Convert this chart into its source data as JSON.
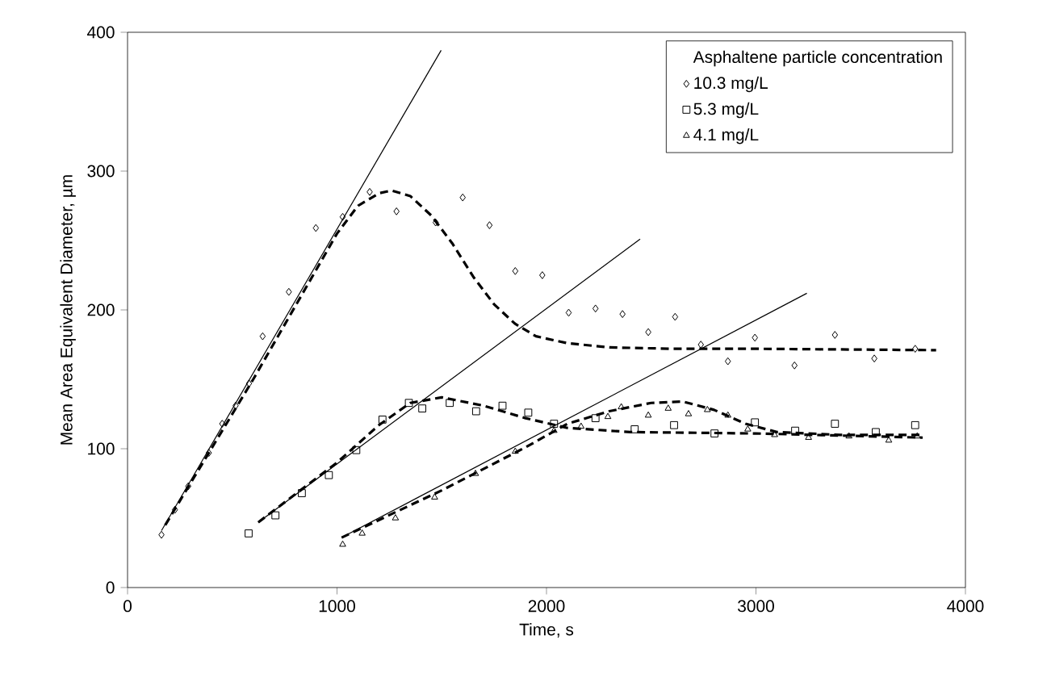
{
  "chart_data": {
    "type": "scatter",
    "xlabel": "Time, s",
    "ylabel": "Mean Area Equivalent Diameter, µm",
    "legend_title": "Asphaltene particle concentration",
    "legend": "top right",
    "grid": false,
    "xlim": [
      0,
      4000
    ],
    "ylim": [
      0,
      400
    ],
    "xticks": [
      0,
      1000,
      2000,
      3000,
      4000
    ],
    "yticks": [
      0,
      100,
      200,
      300,
      400
    ],
    "series": [
      {
        "name": "10.3 mg/L",
        "type": "scatter",
        "marker": "diamond",
        "color": "#000000",
        "x": [
          162,
          226,
          290,
          388,
          452,
          516,
          580,
          645,
          770,
          899,
          1027,
          1156,
          1284,
          1471,
          1600,
          1728,
          1851,
          1980,
          2106,
          2234,
          2363,
          2486,
          2614,
          2737,
          2866,
          2995,
          3184,
          3377,
          3565,
          3760
        ],
        "values": [
          38,
          56,
          73,
          97,
          118,
          131,
          147,
          181,
          213,
          259,
          267,
          285,
          271,
          263,
          281,
          261,
          228,
          225,
          198,
          201,
          197,
          184,
          195,
          175,
          163,
          180,
          160,
          182,
          165,
          172
        ]
      },
      {
        "name": "5.3 mg/L",
        "type": "scatter",
        "marker": "square",
        "color": "#000000",
        "x": [
          578,
          706,
          832,
          961,
          1092,
          1217,
          1343,
          1407,
          1538,
          1664,
          1790,
          1913,
          2036,
          2234,
          2421,
          2609,
          2802,
          2995,
          3187,
          3377,
          3572,
          3760
        ],
        "values": [
          39,
          52,
          68,
          81,
          99,
          121,
          133,
          129,
          133,
          127,
          131,
          126,
          118,
          122,
          114,
          117,
          111,
          119,
          113,
          118,
          112,
          117
        ]
      },
      {
        "name": "4.1 mg/L",
        "type": "scatter",
        "marker": "triangle",
        "color": "#000000",
        "x": [
          1027,
          1120,
          1279,
          1466,
          1661,
          1851,
          2036,
          2165,
          2293,
          2357,
          2486,
          2581,
          2678,
          2768,
          2866,
          2961,
          3089,
          3251,
          3444,
          3634,
          3770
        ],
        "values": [
          31,
          39,
          50,
          65,
          82,
          98,
          113,
          116,
          123,
          130,
          124,
          129,
          125,
          128,
          124,
          114,
          110,
          108,
          109,
          106,
          109
        ]
      },
      {
        "type": "line",
        "marker": "none",
        "line_style": "solid",
        "color": "#000000",
        "x": [
          162,
          1497
        ],
        "values": [
          41,
          387
        ]
      },
      {
        "type": "line",
        "marker": "none",
        "line_style": "solid",
        "color": "#000000",
        "x": [
          624,
          2447
        ],
        "values": [
          47,
          251
        ]
      },
      {
        "type": "line",
        "marker": "none",
        "line_style": "solid",
        "color": "#000000",
        "x": [
          1022,
          3243
        ],
        "values": [
          36,
          212
        ]
      },
      {
        "type": "line",
        "marker": "none",
        "line_style": "dashed",
        "color": "#000000",
        "x": [
          180,
          600,
          1000,
          1100,
          1200,
          1260,
          1350,
          1450,
          1550,
          1650,
          1750,
          1850,
          1950,
          2100,
          2300,
          2600,
          3000,
          3860
        ],
        "values": [
          45,
          150,
          255,
          275,
          284,
          286,
          282,
          268,
          248,
          224,
          204,
          190,
          181,
          176,
          173,
          172,
          172,
          171
        ]
      },
      {
        "type": "line",
        "marker": "none",
        "line_style": "dashed",
        "color": "#000000",
        "x": [
          624,
          1000,
          1200,
          1350,
          1500,
          1700,
          1900,
          2100,
          2400,
          3000,
          3796
        ],
        "values": [
          47,
          90,
          117,
          133,
          137,
          131,
          122,
          115,
          112,
          111,
          108
        ]
      },
      {
        "type": "line",
        "marker": "none",
        "line_style": "dashed",
        "color": "#000000",
        "x": [
          1022,
          1500,
          1900,
          2100,
          2300,
          2500,
          2650,
          2800,
          2950,
          3100,
          3400,
          3800
        ],
        "values": [
          36,
          70,
          101,
          118,
          127,
          133,
          134,
          128,
          118,
          112,
          110,
          110
        ]
      }
    ]
  }
}
